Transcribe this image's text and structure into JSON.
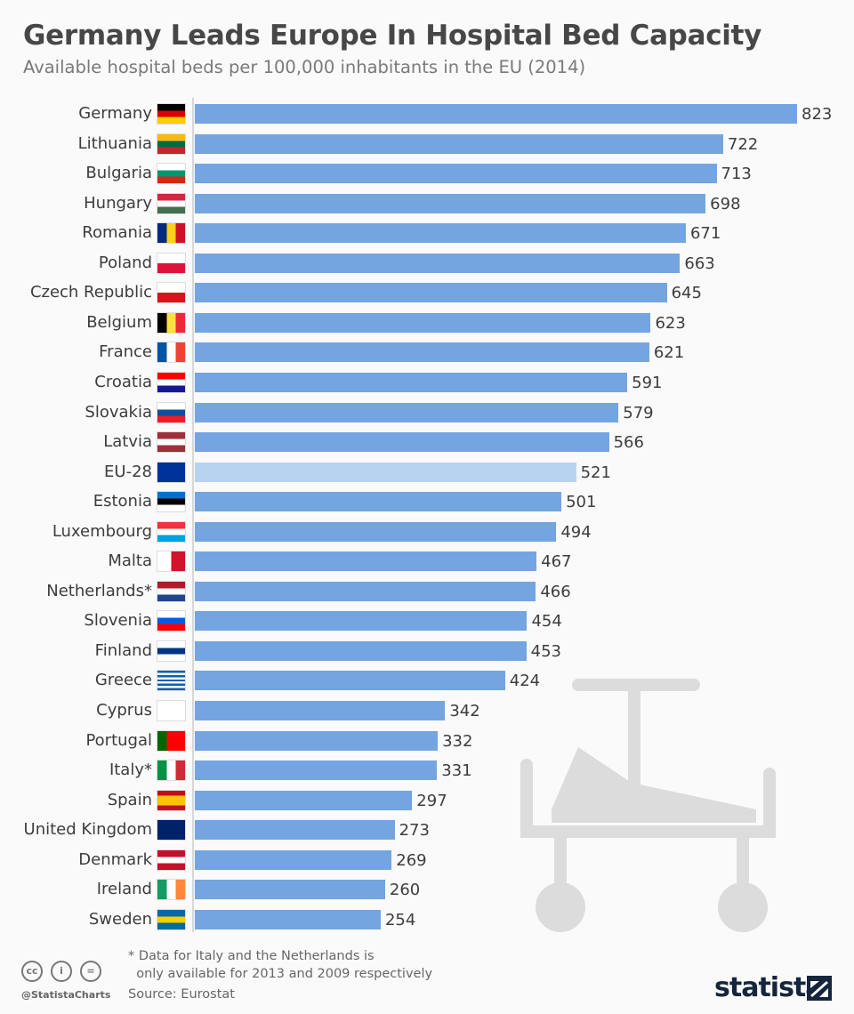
{
  "chart_data": {
    "type": "bar",
    "title": "Germany Leads Europe In Hospital Bed Capacity",
    "subtitle": "Available hospital beds per 100,000 inhabitants in the EU (2014)",
    "xlabel": "",
    "ylabel": "",
    "xlim": [
      0,
      823
    ],
    "categories": [
      "Germany",
      "Lithuania",
      "Bulgaria",
      "Hungary",
      "Romania",
      "Poland",
      "Czech Republic",
      "Belgium",
      "France",
      "Croatia",
      "Slovakia",
      "Latvia",
      "EU-28",
      "Estonia",
      "Luxembourg",
      "Malta",
      "Netherlands*",
      "Slovenia",
      "Finland",
      "Greece",
      "Cyprus",
      "Portugal",
      "Italy*",
      "Spain",
      "United Kingdom",
      "Denmark",
      "Ireland",
      "Sweden"
    ],
    "values": [
      823,
      722,
      713,
      698,
      671,
      663,
      645,
      623,
      621,
      591,
      579,
      566,
      521,
      501,
      494,
      467,
      466,
      454,
      453,
      424,
      342,
      332,
      331,
      297,
      273,
      269,
      260,
      254
    ],
    "highlight": "EU-28",
    "colors": {
      "bar": "#74a5e0",
      "highlight": "#b8d3f0"
    }
  },
  "flags": {
    "Germany": [
      "h",
      "#000000",
      "#dd0000",
      "#ffce00"
    ],
    "Lithuania": [
      "h",
      "#fdb913",
      "#006a44",
      "#c1272d"
    ],
    "Bulgaria": [
      "h",
      "#ffffff",
      "#00966e",
      "#d62612"
    ],
    "Hungary": [
      "h",
      "#cd2a3e",
      "#ffffff",
      "#436f4d"
    ],
    "Romania": [
      "v",
      "#002b7f",
      "#fcd116",
      "#ce1126"
    ],
    "Poland": [
      "h",
      "#ffffff",
      "#dc143c"
    ],
    "Czech Republic": [
      "h",
      "#ffffff",
      "#d7141a"
    ],
    "Belgium": [
      "v",
      "#000000",
      "#fae042",
      "#ed2939"
    ],
    "France": [
      "v",
      "#0055a4",
      "#ffffff",
      "#ef4135"
    ],
    "Croatia": [
      "h",
      "#ff0000",
      "#ffffff",
      "#171796"
    ],
    "Slovakia": [
      "h",
      "#ffffff",
      "#0b4ea2",
      "#ee1c25"
    ],
    "Latvia": [
      "h",
      "#9e3039",
      "#ffffff",
      "#9e3039"
    ],
    "EU-28": [
      "h",
      "#003399"
    ],
    "Estonia": [
      "h",
      "#0072ce",
      "#000000",
      "#ffffff"
    ],
    "Luxembourg": [
      "h",
      "#ef3340",
      "#ffffff",
      "#00a3e0"
    ],
    "Malta": [
      "v",
      "#ffffff",
      "#cf142b"
    ],
    "Netherlands*": [
      "h",
      "#ae1c28",
      "#ffffff",
      "#21468b"
    ],
    "Slovenia": [
      "h",
      "#ffffff",
      "#005ce5",
      "#ff0000"
    ],
    "Finland": [
      "h",
      "#ffffff",
      "#003580",
      "#ffffff"
    ],
    "Greece": [
      "h",
      "#0d5eaf",
      "#ffffff",
      "#0d5eaf",
      "#ffffff",
      "#0d5eaf",
      "#ffffff",
      "#0d5eaf",
      "#ffffff",
      "#0d5eaf"
    ],
    "Cyprus": [
      "h",
      "#ffffff"
    ],
    "Portugal": [
      "v",
      "#006600",
      "#ff0000",
      "#ff0000"
    ],
    "Italy*": [
      "v",
      "#009246",
      "#ffffff",
      "#ce2b37"
    ],
    "Spain": [
      "h",
      "#c60b1e",
      "#ffc400",
      "#ffc400",
      "#c60b1e"
    ],
    "United Kingdom": [
      "h",
      "#012169"
    ],
    "Denmark": [
      "h",
      "#c8102e",
      "#ffffff",
      "#c8102e"
    ],
    "Ireland": [
      "v",
      "#169b62",
      "#ffffff",
      "#ff883e"
    ],
    "Sweden": [
      "h",
      "#006aa7",
      "#fecc00",
      "#006aa7"
    ]
  },
  "footer": {
    "note": "* Data for Italy and the Netherlands is\n  only available for 2013 and 2009 respectively",
    "source": "Source: Eurostat",
    "handle": "@StatistaCharts",
    "logo": "statista",
    "cc_icons": [
      "cc",
      "i",
      "="
    ]
  }
}
